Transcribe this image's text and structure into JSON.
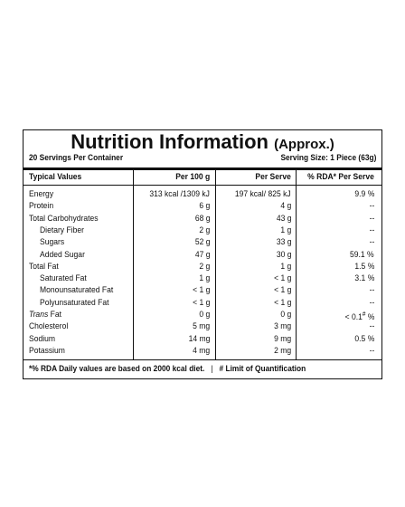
{
  "header": {
    "title": "Nutrition Information",
    "title_note": "(Approx.)",
    "servings": "20 Servings Per Container",
    "serving_size": "Serving Size: 1 Piece (63g)"
  },
  "table": {
    "columns": [
      "Typical Values",
      "Per 100 g",
      "Per Serve",
      "% RDA* Per Serve"
    ],
    "rows": [
      {
        "label": "Energy",
        "indent": false,
        "cells": [
          "313 kcal /1309 kJ",
          "197 kcal/ 825 kJ",
          "9.9 %"
        ]
      },
      {
        "label": "Protein",
        "indent": false,
        "cells": [
          "6 g",
          "4 g",
          "--"
        ]
      },
      {
        "label": "Total Carbohydrates",
        "indent": false,
        "cells": [
          "68 g",
          "43 g",
          "--"
        ]
      },
      {
        "label": "Dietary Fiber",
        "indent": true,
        "cells": [
          "2 g",
          "1 g",
          "--"
        ]
      },
      {
        "label": "Sugars",
        "indent": true,
        "cells": [
          "52 g",
          "33 g",
          "--"
        ]
      },
      {
        "label": "Added Sugar",
        "indent": true,
        "cells": [
          "47 g",
          "30 g",
          "59.1 %"
        ]
      },
      {
        "label": "Total Fat",
        "indent": false,
        "cells": [
          "2 g",
          "1 g",
          "1.5 %"
        ]
      },
      {
        "label": "Saturated Fat",
        "indent": true,
        "cells": [
          "1 g",
          "< 1 g",
          "3.1 %"
        ]
      },
      {
        "label": "Monounsaturated Fat",
        "indent": true,
        "cells": [
          "< 1 g",
          "< 1 g",
          "--"
        ]
      },
      {
        "label": "Polyunsaturated Fat",
        "indent": true,
        "cells": [
          "< 1 g",
          "< 1 g",
          "--"
        ]
      },
      {
        "label_italic": "Trans",
        "label": "Fat",
        "indent": false,
        "cells": [
          "0 g",
          "0 g",
          {
            "value": "< 0.1",
            "mark": "#",
            "unit": "%"
          }
        ]
      },
      {
        "label": "Cholesterol",
        "indent": false,
        "cells": [
          "5 mg",
          "3 mg",
          "--"
        ]
      },
      {
        "label": "Sodium",
        "indent": false,
        "cells": [
          "14 mg",
          "9 mg",
          "0.5 %"
        ]
      },
      {
        "label": "Potassium",
        "indent": false,
        "cells": [
          "4 mg",
          "2 mg",
          "--"
        ]
      }
    ]
  },
  "footer": {
    "note": "*% RDA Daily values are based on 2000 kcal diet.",
    "separator": "|",
    "note2": "# Limit of Quantification"
  }
}
